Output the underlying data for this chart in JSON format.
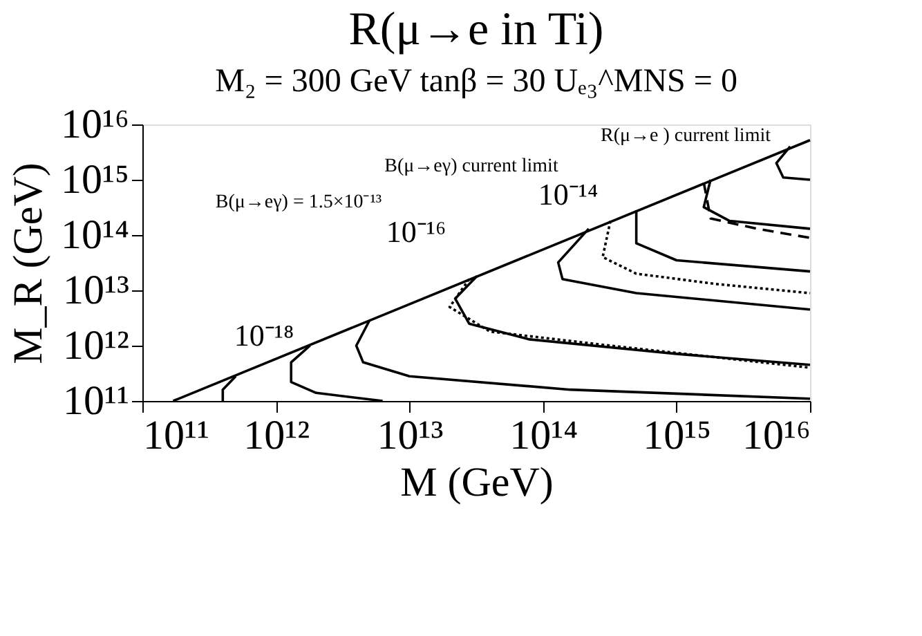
{
  "chart_data": {
    "type": "line",
    "title": "R(μ→e  in Ti)",
    "subtitle": "M₂ = 300 GeV   tanβ = 30   Uₑ₃^MNS = 0",
    "xlabel": "M (GeV)",
    "ylabel": "M_R (GeV)",
    "log": "xy",
    "grid": false,
    "marker": "none",
    "xlim": [
      100000000000.0,
      1e+16
    ],
    "ylim": [
      100000000000.0,
      1e+16
    ],
    "xticks": [
      {
        "value": 100000000000.0,
        "label": "10¹¹"
      },
      {
        "value": 1000000000000.0,
        "label": "10¹²"
      },
      {
        "value": 10000000000000.0,
        "label": "10¹³"
      },
      {
        "value": 100000000000000.0,
        "label": "10¹⁴"
      },
      {
        "value": 1000000000000000.0,
        "label": "10¹⁵"
      },
      {
        "value": 1e+16,
        "label": "10¹⁶"
      }
    ],
    "yticks": [
      {
        "value": 100000000000.0,
        "label": "10¹¹"
      },
      {
        "value": 1000000000000.0,
        "label": "10¹²"
      },
      {
        "value": 10000000000000.0,
        "label": "10¹³"
      },
      {
        "value": 100000000000000.0,
        "label": "10¹⁴"
      },
      {
        "value": 1000000000000000.0,
        "label": "10¹⁵"
      },
      {
        "value": 1e+16,
        "label": "10¹⁶"
      }
    ],
    "series": [
      {
        "color": "#000000",
        "line_style": "solid",
        "x": [
          170000000000.0,
          1e+16
        ],
        "values": [
          100000000000.0,
          5200000000000000.0
        ]
      },
      {
        "color": "#000000",
        "line_style": "solid",
        "x": [
          500000000000.0,
          400000000000.0,
          400000000000.0
        ],
        "values": [
          280000000000.0,
          160000000000.0,
          100000000000.0
        ]
      },
      {
        "color": "#000000",
        "line_style": "solid",
        "x": [
          1800000000000.0,
          1300000000000.0,
          1300000000000.0,
          2000000000000.0,
          6300000000000.0
        ],
        "values": [
          1000000000000.0,
          500000000000.0,
          220000000000.0,
          140000000000.0,
          100000000000.0
        ]
      },
      {
        "color": "#000000",
        "line_style": "solid",
        "x": [
          5000000000000.0,
          4000000000000.0,
          4500000000000.0,
          10000000000000.0,
          160000000000000.0,
          1e+16
        ],
        "values": [
          2800000000000.0,
          1000000000000.0,
          500000000000.0,
          280000000000.0,
          160000000000.0,
          110000000000.0
        ]
      },
      {
        "color": "#000000",
        "line_style": "solid",
        "x": [
          32000000000000.0,
          22000000000000.0,
          28000000000000.0,
          79000000000000.0,
          1000000000000000.0,
          1e+16
        ],
        "values": [
          18000000000000.0,
          7100000000000.0,
          2500000000000.0,
          1300000000000.0,
          710000000000.0,
          450000000000.0
        ]
      },
      {
        "color": "#000000",
        "line_style": "dotted",
        "x": [
          28000000000000.0,
          20000000000000.0,
          40000000000000.0,
          320000000000000.0,
          1e+16
        ],
        "values": [
          16000000000000.0,
          5000000000000.0,
          1800000000000.0,
          1000000000000.0,
          400000000000.0
        ]
      },
      {
        "color": "#000000",
        "line_style": "solid",
        "x": [
          220000000000000.0,
          130000000000000.0,
          140000000000000.0,
          500000000000000.0,
          1e+16
        ],
        "values": [
          130000000000000.0,
          32000000000000.0,
          16000000000000.0,
          8900000000000.0,
          4500000000000.0
        ]
      },
      {
        "color": "#000000",
        "line_style": "dotted",
        "x": [
          320000000000000.0,
          280000000000000.0,
          500000000000000.0,
          2000000000000000.0,
          1e+16
        ],
        "values": [
          180000000000000.0,
          40000000000000.0,
          20000000000000.0,
          13000000000000.0,
          8900000000000.0
        ]
      },
      {
        "color": "#000000",
        "line_style": "solid",
        "x": [
          500000000000000.0,
          500000000000000.0,
          1000000000000000.0,
          1e+16
        ],
        "values": [
          280000000000000.0,
          71000000000000.0,
          35000000000000.0,
          22000000000000.0
        ]
      },
      {
        "color": "#000000",
        "line_style": "solid",
        "x": [
          1800000000000000.0,
          1600000000000000.0,
          2500000000000000.0,
          1e+16
        ],
        "values": [
          1000000000000000.0,
          320000000000000.0,
          180000000000000.0,
          130000000000000.0
        ]
      },
      {
        "color": "#000000",
        "line_style": "dashed",
        "x": [
          1600000000000000.0,
          1800000000000000.0,
          4000000000000000.0,
          1e+16
        ],
        "values": [
          890000000000000.0,
          200000000000000.0,
          130000000000000.0,
          89000000000000.0
        ]
      },
      {
        "color": "#000000",
        "line_style": "solid",
        "x": [
          7100000000000000.0,
          5600000000000000.0,
          6300000000000000.0,
          1e+16
        ],
        "values": [
          4000000000000000.0,
          2000000000000000.0,
          1100000000000000.0,
          1000000000000000.0
        ]
      }
    ],
    "annotations": [
      "10⁻¹⁸",
      "10⁻¹⁶",
      "10⁻¹⁴",
      "R(μ→e ) current limit",
      "B(μ→eγ) current limit",
      "B(μ→eγ) = 1.5×10⁻¹³"
    ]
  }
}
